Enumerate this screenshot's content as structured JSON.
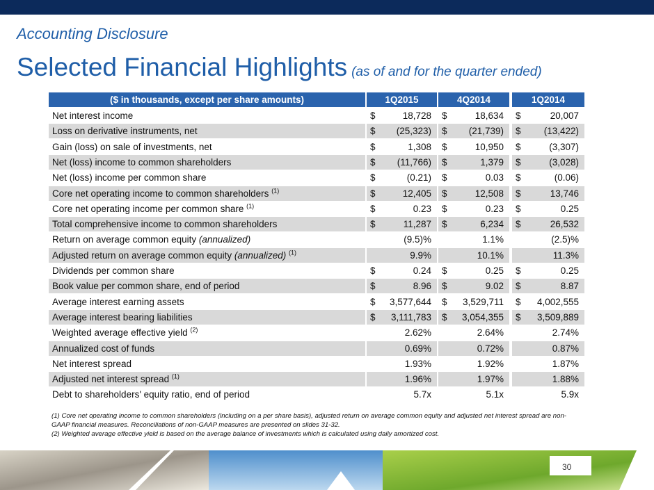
{
  "header": {
    "subtitle": "Accounting Disclosure",
    "title": "Selected Financial Highlights",
    "title_note": "(as of and for the quarter ended)"
  },
  "table": {
    "columns": [
      "($ in thousands, except per share amounts)",
      "1Q2015",
      "4Q2014",
      "1Q2014"
    ],
    "rows": [
      {
        "label": "Net interest income",
        "cells": [
          {
            "symbol": "$",
            "value": "18,728"
          },
          {
            "symbol": "$",
            "value": "18,634"
          },
          {
            "symbol": "$",
            "value": "20,007"
          }
        ]
      },
      {
        "label": "Loss on derivative instruments, net",
        "cells": [
          {
            "symbol": "$",
            "value": "(25,323)"
          },
          {
            "symbol": "$",
            "value": "(21,739)"
          },
          {
            "symbol": "$",
            "value": "(13,422)"
          }
        ]
      },
      {
        "label": "Gain (loss) on sale of investments, net",
        "cells": [
          {
            "symbol": "$",
            "value": "1,308"
          },
          {
            "symbol": "$",
            "value": "10,950"
          },
          {
            "symbol": "$",
            "value": "(3,307)"
          }
        ]
      },
      {
        "label": "Net (loss) income to common shareholders",
        "cells": [
          {
            "symbol": "$",
            "value": "(11,766)"
          },
          {
            "symbol": "$",
            "value": "1,379"
          },
          {
            "symbol": "$",
            "value": "(3,028)"
          }
        ]
      },
      {
        "label": "Net (loss) income per common share",
        "cells": [
          {
            "symbol": "$",
            "value": "(0.21)"
          },
          {
            "symbol": "$",
            "value": "0.03"
          },
          {
            "symbol": "$",
            "value": "(0.06)"
          }
        ]
      },
      {
        "label": "Core net operating income to common shareholders",
        "note": "(1)",
        "cells": [
          {
            "symbol": "$",
            "value": "12,405"
          },
          {
            "symbol": "$",
            "value": "12,508"
          },
          {
            "symbol": "$",
            "value": "13,746"
          }
        ]
      },
      {
        "label": "Core net operating income per common share",
        "note": "(1)",
        "cells": [
          {
            "symbol": "$",
            "value": "0.23"
          },
          {
            "symbol": "$",
            "value": "0.23"
          },
          {
            "symbol": "$",
            "value": "0.25"
          }
        ]
      },
      {
        "label": "Total comprehensive income to common shareholders",
        "cells": [
          {
            "symbol": "$",
            "value": "11,287"
          },
          {
            "symbol": "$",
            "value": "6,234"
          },
          {
            "symbol": "$",
            "value": "26,532"
          }
        ]
      },
      {
        "label": "Return on average common equity",
        "label_italic": "(annualized)",
        "cells": [
          {
            "value": "(9.5)%"
          },
          {
            "value": "1.1%"
          },
          {
            "value": "(2.5)%"
          }
        ]
      },
      {
        "label": "Adjusted return on average common equity",
        "label_italic": "(annualized)",
        "note": "(1)",
        "cells": [
          {
            "value": "9.9%"
          },
          {
            "value": "10.1%"
          },
          {
            "value": "11.3%"
          }
        ]
      },
      {
        "label": "Dividends per common share",
        "cells": [
          {
            "symbol": "$",
            "value": "0.24"
          },
          {
            "symbol": "$",
            "value": "0.25"
          },
          {
            "symbol": "$",
            "value": "0.25"
          }
        ]
      },
      {
        "label": "Book value per common share, end of period",
        "cells": [
          {
            "symbol": "$",
            "value": "8.96"
          },
          {
            "symbol": "$",
            "value": "9.02"
          },
          {
            "symbol": "$",
            "value": "8.87"
          }
        ]
      },
      {
        "label": "Average interest earning assets",
        "cells": [
          {
            "symbol": "$",
            "value": "3,577,644"
          },
          {
            "symbol": "$",
            "value": "3,529,711"
          },
          {
            "symbol": "$",
            "value": "4,002,555"
          }
        ]
      },
      {
        "label": "Average interest bearing liabilities",
        "cells": [
          {
            "symbol": "$",
            "value": "3,111,783"
          },
          {
            "symbol": "$",
            "value": "3,054,355"
          },
          {
            "symbol": "$",
            "value": "3,509,889"
          }
        ]
      },
      {
        "label": "Weighted average effective yield",
        "note": "(2)",
        "cells": [
          {
            "value": "2.62%"
          },
          {
            "value": "2.64%"
          },
          {
            "value": "2.74%"
          }
        ]
      },
      {
        "label": "Annualized cost of funds",
        "cells": [
          {
            "value": "0.69%"
          },
          {
            "value": "0.72%"
          },
          {
            "value": "0.87%"
          }
        ]
      },
      {
        "label": "Net interest spread",
        "cells": [
          {
            "value": "1.93%"
          },
          {
            "value": "1.92%"
          },
          {
            "value": "1.87%"
          }
        ]
      },
      {
        "label": "Adjusted net interest spread",
        "note": "(1)",
        "cells": [
          {
            "value": "1.96%"
          },
          {
            "value": "1.97%"
          },
          {
            "value": "1.88%"
          }
        ]
      },
      {
        "label": "Debt to shareholders' equity ratio, end of period",
        "cells": [
          {
            "value": "5.7x"
          },
          {
            "value": "5.1x"
          },
          {
            "value": "5.9x"
          }
        ]
      }
    ]
  },
  "footnotes": [
    "(1) Core net operating income to common shareholders (including on a per share basis), adjusted return on average common equity and adjusted net interest spread are non-GAAP financial measures. Reconciliations of non-GAAP measures are presented on slides 31-32.",
    "(2) Weighted average effective yield is based on the average balance of investments which is calculated using daily amortized cost."
  ],
  "page_number": "30"
}
